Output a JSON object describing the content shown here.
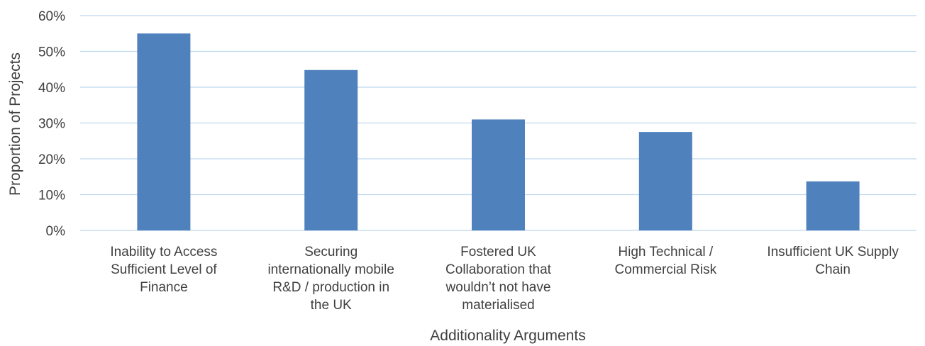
{
  "chart_data": {
    "type": "bar",
    "title": "",
    "xlabel": "Additionality Arguments",
    "ylabel": "Proportion of Projects",
    "categories": [
      [
        "Inability to Access",
        "Sufficient Level of",
        "Finance"
      ],
      [
        "Securing",
        "internationally mobile",
        "R&D / production in",
        "the UK"
      ],
      [
        "Fostered UK",
        "Collaboration that",
        "wouldn’t not have",
        "materialised"
      ],
      [
        "High Technical /",
        "Commercial Risk"
      ],
      [
        "Insufficient UK Supply",
        "Chain"
      ]
    ],
    "values": [
      0.55,
      0.448,
      0.31,
      0.275,
      0.137
    ],
    "ylim": [
      0,
      0.6
    ],
    "yticks": [
      0,
      0.1,
      0.2,
      0.3,
      0.4,
      0.5,
      0.6
    ],
    "ytick_labels": [
      "0%",
      "10%",
      "20%",
      "30%",
      "40%",
      "50%",
      "60%"
    ],
    "grid": true,
    "legend": "none",
    "colors": {
      "bar": "#4f81bd",
      "grid": "#bfd8ee",
      "text": "#404040"
    }
  }
}
